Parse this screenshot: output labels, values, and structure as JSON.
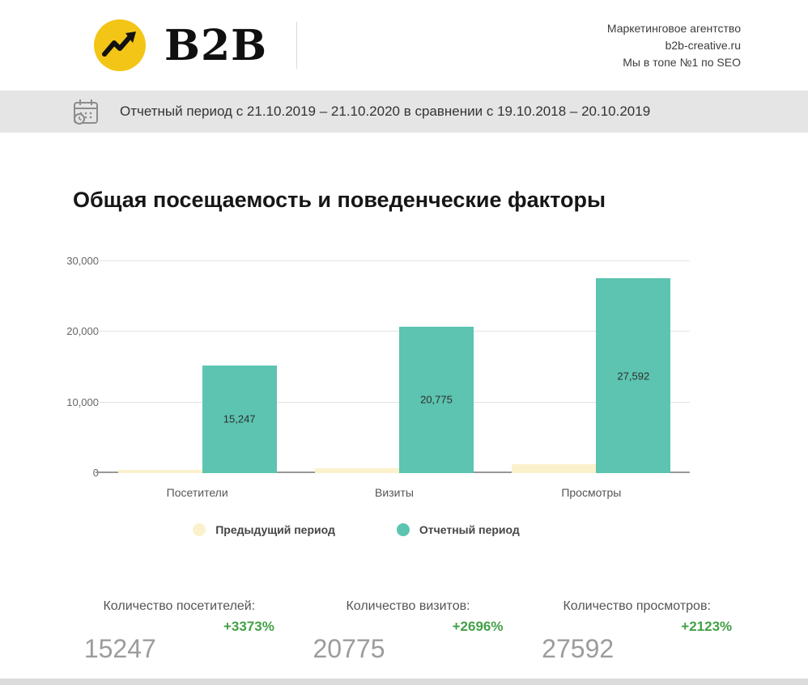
{
  "header": {
    "logo_text": "B2B",
    "agency_line1": "Маркетинговое агентство",
    "agency_line2": "b2b-creative.ru",
    "agency_line3": "Мы в топе №1 по SEO"
  },
  "report_banner": {
    "text": "Отчетный период с 21.10.2019 – 21.10.2020 в сравнении с 19.10.2018 – 20.10.2019"
  },
  "section_title": "Общая посещаемость и поведенческие факторы",
  "chart_data": {
    "type": "bar",
    "title": "Общая посещаемость и поведенческие факторы",
    "categories": [
      "Посетители",
      "Визиты",
      "Просмотры"
    ],
    "series": [
      {
        "name": "Предыдущий период",
        "color": "#fbf1cd",
        "values": [
          440,
          740,
          1240
        ]
      },
      {
        "name": "Отчетный период",
        "color": "#5cc4b0",
        "values": [
          15247,
          20775,
          27592
        ],
        "labels": [
          "15,247",
          "20,775",
          "27,592"
        ]
      }
    ],
    "ylim": [
      0,
      30000
    ],
    "yticks": [
      "0",
      "10,000",
      "20,000",
      "30,000"
    ],
    "grid": true,
    "legend_position": "bottom"
  },
  "stats": [
    {
      "label": "Количество посетителей:",
      "percent": "+3373%",
      "value": "15247"
    },
    {
      "label": "Количество визитов:",
      "percent": "+2696%",
      "value": "20775"
    },
    {
      "label": "Количество просмотров:",
      "percent": "+2123%",
      "value": "27592"
    }
  ],
  "colors": {
    "previous_period": "#fbf1cd",
    "report_period": "#5cc4b0",
    "percent_green": "#43a047",
    "value_gray": "#9c9c9c",
    "banner_bg": "#e5e5e5",
    "logo_gold": "#f3c517"
  }
}
